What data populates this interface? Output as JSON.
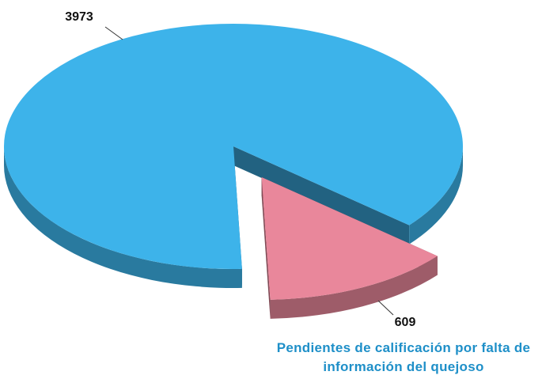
{
  "chart_data": {
    "type": "pie",
    "categories": [
      null,
      "Pendientes de calificación por falta de información del quejoso"
    ],
    "values": [
      3973,
      609
    ],
    "colors": [
      "#3db3ea",
      "#e9879b"
    ],
    "label_color": "#1e8fc8"
  }
}
